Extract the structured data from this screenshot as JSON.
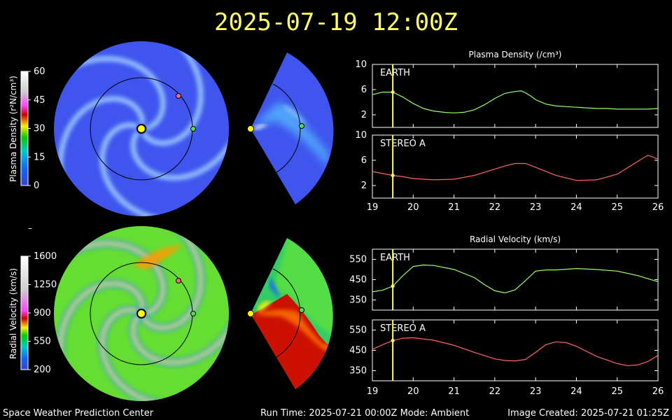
{
  "title": "2025-07-19 12:00Z",
  "footer": {
    "left": "Space Weather Prediction Center",
    "middle": "Run Time: 2025-07-21 00:00Z  Mode: Ambient",
    "right": "Image Created: 2025-07-21 01:25Z"
  },
  "colorbars": [
    {
      "label": "Plasma Density (r²N/cm³)",
      "ticks": [
        "60",
        "45",
        "30",
        "15",
        "0"
      ]
    },
    {
      "label": "Radial Velocity (km/s)",
      "ticks": [
        "1600",
        "1250",
        "900",
        "550",
        "200"
      ]
    }
  ],
  "dash": "–",
  "colors": {
    "title": "#ffff66",
    "earth": "#44dd44",
    "stereo_a": "#ff6688",
    "time_marker": "#ffff66",
    "earth_series": "#99ff66",
    "stereo_series": "#ff6666"
  },
  "chart_data": [
    {
      "type": "line",
      "title": "Plasma Density (/cm³)",
      "xlim": [
        19,
        26
      ],
      "x_ticks": [
        "19",
        "20",
        "21",
        "22",
        "23",
        "24",
        "25",
        "26"
      ],
      "marker_x": 19.5,
      "panels": [
        {
          "name": "EARTH",
          "ylim": [
            0,
            10
          ],
          "y_ticks": [
            "10",
            "6",
            "2"
          ],
          "x": [
            19.0,
            19.25,
            19.5,
            19.75,
            20.0,
            20.25,
            20.5,
            20.75,
            21.0,
            21.25,
            21.5,
            21.75,
            22.0,
            22.25,
            22.5,
            22.65,
            22.75,
            22.9,
            23.0,
            23.25,
            23.5,
            23.75,
            24.0,
            24.25,
            24.5,
            24.75,
            25.0,
            25.25,
            25.5,
            25.75,
            26.0
          ],
          "y": [
            5.2,
            5.6,
            5.6,
            4.8,
            3.8,
            3.0,
            2.6,
            2.4,
            2.3,
            2.4,
            2.8,
            3.6,
            4.6,
            5.4,
            5.7,
            5.8,
            5.5,
            4.9,
            4.4,
            3.7,
            3.4,
            3.3,
            3.2,
            3.1,
            3.0,
            3.0,
            2.9,
            2.9,
            2.9,
            2.9,
            3.0
          ]
        },
        {
          "name": "STEREO A",
          "ylim": [
            0,
            10
          ],
          "y_ticks": [
            "10",
            "6",
            "2"
          ],
          "x": [
            19.0,
            19.25,
            19.5,
            19.75,
            20.0,
            20.5,
            21.0,
            21.5,
            22.0,
            22.25,
            22.5,
            22.75,
            23.0,
            23.5,
            24.0,
            24.5,
            25.0,
            25.25,
            25.5,
            25.75,
            26.0
          ],
          "y": [
            4.2,
            3.9,
            3.6,
            3.4,
            3.1,
            2.9,
            3.0,
            3.6,
            4.6,
            5.1,
            5.5,
            5.5,
            4.9,
            3.6,
            2.8,
            2.9,
            3.8,
            4.8,
            5.8,
            6.8,
            6.2
          ]
        }
      ]
    },
    {
      "type": "line",
      "title": "Radial Velocity (km/s)",
      "xlim": [
        19,
        26
      ],
      "x_ticks": [
        "19",
        "20",
        "21",
        "22",
        "23",
        "24",
        "25",
        "26"
      ],
      "marker_x": 19.5,
      "panels": [
        {
          "name": "EARTH",
          "ylim": [
            300,
            600
          ],
          "y_ticks": [
            "550",
            "450",
            "350"
          ],
          "x": [
            19.0,
            19.25,
            19.5,
            19.75,
            20.0,
            20.25,
            20.5,
            21.0,
            21.5,
            21.75,
            22.0,
            22.25,
            22.5,
            22.75,
            23.0,
            23.25,
            23.5,
            24.0,
            24.5,
            25.0,
            25.5,
            25.75,
            26.0
          ],
          "y": [
            390,
            398,
            418,
            470,
            515,
            522,
            520,
            500,
            460,
            425,
            395,
            385,
            400,
            445,
            492,
            498,
            498,
            505,
            500,
            492,
            470,
            455,
            440
          ]
        },
        {
          "name": "STEREO A",
          "ylim": [
            300,
            600
          ],
          "y_ticks": [
            "550",
            "450",
            "350"
          ],
          "x": [
            19.0,
            19.25,
            19.5,
            19.75,
            20.0,
            20.5,
            21.0,
            21.5,
            22.0,
            22.25,
            22.5,
            22.75,
            23.0,
            23.25,
            23.5,
            23.75,
            24.0,
            24.5,
            25.0,
            25.25,
            25.5,
            25.75,
            26.0
          ],
          "y": [
            455,
            478,
            498,
            510,
            512,
            500,
            475,
            440,
            408,
            400,
            398,
            405,
            440,
            478,
            492,
            488,
            470,
            420,
            385,
            375,
            378,
            395,
            425
          ]
        }
      ]
    }
  ]
}
